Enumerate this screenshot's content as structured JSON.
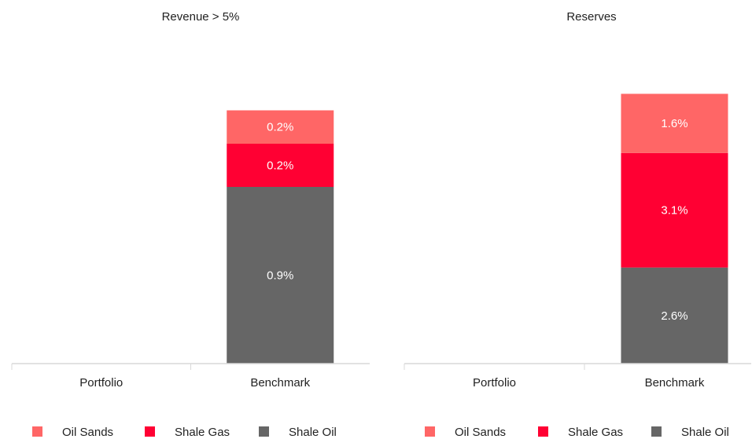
{
  "chart_data": [
    {
      "type": "bar",
      "stacked": true,
      "title": "Revenue > 5%",
      "categories": [
        "Portfolio",
        "Benchmark"
      ],
      "ylim": [
        0,
        1.6
      ],
      "series": [
        {
          "name": "Oil Sands",
          "color": "#ff6666",
          "values": [
            0,
            0.17
          ],
          "value_labels": [
            null,
            "0.2%"
          ]
        },
        {
          "name": "Shale Gas",
          "color": "#ff0033",
          "values": [
            0,
            0.22
          ],
          "value_labels": [
            null,
            "0.2%"
          ]
        },
        {
          "name": "Shale Oil",
          "color": "#666666",
          "values": [
            0,
            0.9
          ],
          "value_labels": [
            null,
            "0.9%"
          ]
        }
      ]
    },
    {
      "type": "bar",
      "stacked": true,
      "title": "Reserves",
      "categories": [
        "Portfolio",
        "Benchmark"
      ],
      "ylim": [
        0,
        8.5
      ],
      "series": [
        {
          "name": "Oil Sands",
          "color": "#ff6666",
          "values": [
            0,
            1.6
          ],
          "value_labels": [
            null,
            "1.6%"
          ]
        },
        {
          "name": "Shale Gas",
          "color": "#ff0033",
          "values": [
            0,
            3.1
          ],
          "value_labels": [
            null,
            "3.1%"
          ]
        },
        {
          "name": "Shale Oil",
          "color": "#666666",
          "values": [
            0,
            2.6
          ],
          "value_labels": [
            null,
            "2.6%"
          ]
        }
      ]
    }
  ]
}
